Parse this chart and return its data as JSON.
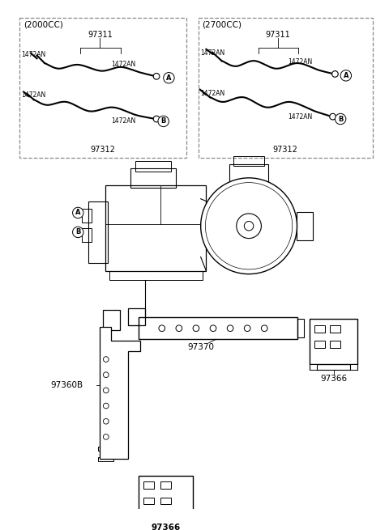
{
  "bg_color": "#ffffff",
  "line_color": "#1a1a1a",
  "dash_color": "#888888",
  "top_left_label": "(2000CC)",
  "top_right_label": "(2700CC)",
  "part_97311": "97311",
  "part_97312": "97312",
  "part_1472AN": "1472AN",
  "p_97370": "97370",
  "p_97360B": "97360B",
  "p_97366": "97366",
  "figsize": [
    4.8,
    6.55
  ],
  "dpi": 100
}
